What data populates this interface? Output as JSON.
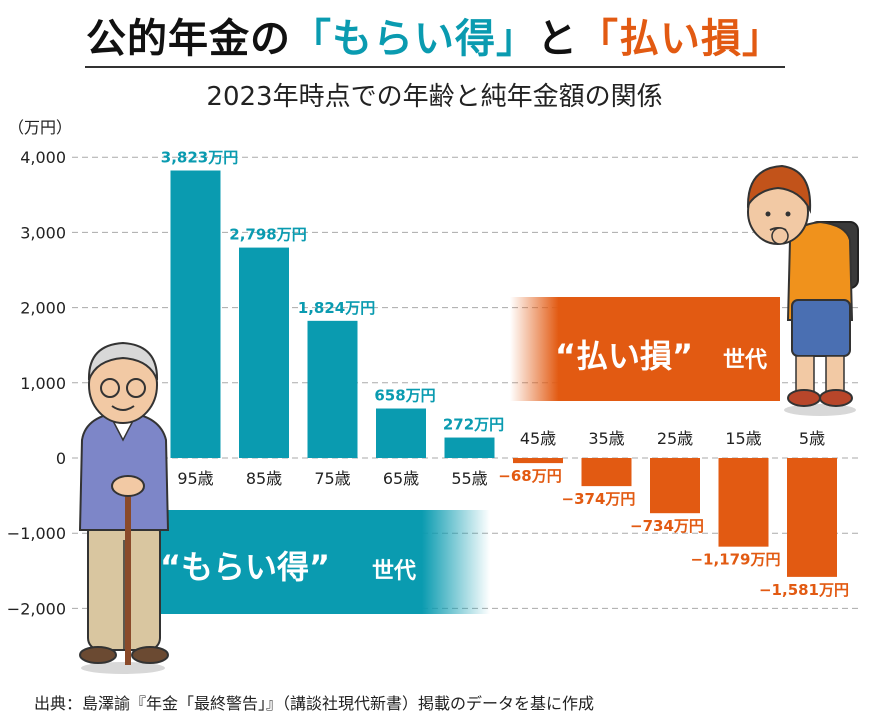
{
  "header": {
    "title_pre": "公的年金の",
    "title_gain": "「もらい得」",
    "title_mid": "と",
    "title_loss": "「払い損」",
    "subtitle": "2023年時点での年齢と純年金額の関係"
  },
  "bands": {
    "gain_label": "“もらい得”",
    "gain_suffix": "世代",
    "loss_label": "“払い損”",
    "loss_suffix": "世代"
  },
  "source": "出典：島澤諭『年金「最終警告」』（講談社現代新書）掲載のデータを基に作成",
  "colors": {
    "positive": "#0a9bb0",
    "negative": "#e25a12",
    "grid": "#aaaaaa"
  },
  "chart_data": {
    "type": "bar",
    "unit_label": "（万円）",
    "categories": [
      "95歳",
      "85歳",
      "75歳",
      "65歳",
      "55歳",
      "45歳",
      "35歳",
      "25歳",
      "15歳",
      "5歳"
    ],
    "values": [
      3823,
      2798,
      1824,
      658,
      272,
      -68,
      -374,
      -734,
      -1179,
      -1581
    ],
    "data_labels": [
      "3,823万円",
      "2,798万円",
      "1,824万円",
      "658万円",
      "272万円",
      "−68万円",
      "−374万円",
      "−734万円",
      "−1,179万円",
      "−1,581万円"
    ],
    "y_ticks": [
      4000,
      3000,
      2000,
      1000,
      0,
      -1000,
      -2000
    ],
    "y_tick_labels": [
      "4,000",
      "3,000",
      "2,000",
      "1,000",
      "0",
      "−1,000",
      "−2,000"
    ],
    "ylim": [
      -2000,
      4000
    ],
    "grid": true
  }
}
